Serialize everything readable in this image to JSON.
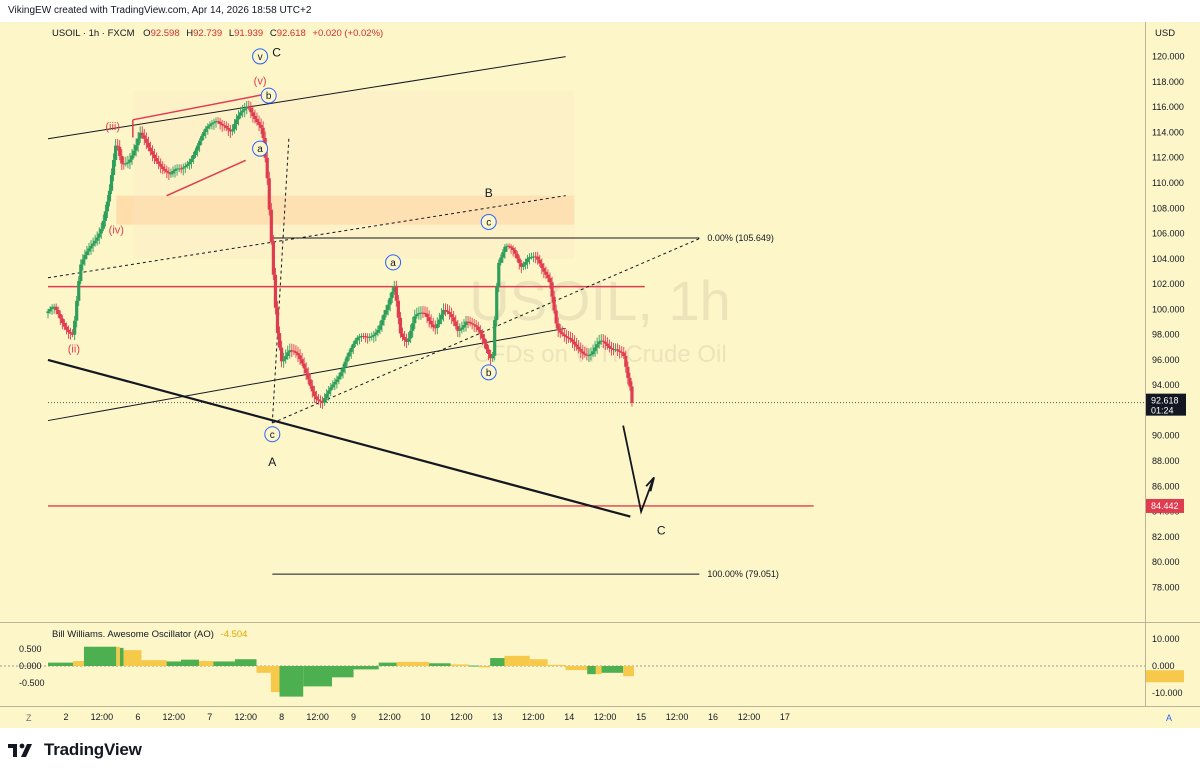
{
  "header": {
    "attribution": "VikingEW created with TradingView.com, Apr 14, 2026 18:58 UTC+2"
  },
  "footer": {
    "brand": "TradingView"
  },
  "legend": {
    "symbol": "USOIL · 1h · FXCM",
    "o_label": "O",
    "o": "92.598",
    "h_label": "H",
    "h": "92.739",
    "l_label": "L",
    "l": "91.939",
    "c_label": "C",
    "c": "92.618",
    "change": "+0.020 (+0.02%)"
  },
  "watermark": {
    "main": "USOIL, 1h",
    "sub": "CFDs on WTI Crude Oil"
  },
  "chart_data": {
    "type": "candlestick",
    "symbol": "USOIL",
    "timeframe": "1h",
    "currency": "USD",
    "price_axis": {
      "label": "USD",
      "range": [
        77,
        121
      ],
      "ticks": [
        "78.000",
        "80.000",
        "82.000",
        "84.000",
        "86.000",
        "88.000",
        "90.000",
        "92.000",
        "94.000",
        "96.000",
        "98.000",
        "100.000",
        "102.000",
        "104.000",
        "106.000",
        "108.000",
        "110.000",
        "112.000",
        "114.000",
        "116.000",
        "118.000",
        "120.000"
      ]
    },
    "last_price": {
      "value": "92.618",
      "countdown": "01:24"
    },
    "level_badge": {
      "value": "84.442"
    },
    "time_axis": {
      "range": [
        0,
        15.05
      ],
      "ticks": [
        {
          "t": 0.25,
          "label": "2"
        },
        {
          "t": 0.75,
          "label": "12:00"
        },
        {
          "t": 1.25,
          "label": "6"
        },
        {
          "t": 1.75,
          "label": "12:00"
        },
        {
          "t": 2.25,
          "label": "7"
        },
        {
          "t": 2.75,
          "label": "12:00"
        },
        {
          "t": 3.25,
          "label": "8"
        },
        {
          "t": 3.75,
          "label": "12:00"
        },
        {
          "t": 4.25,
          "label": "9"
        },
        {
          "t": 4.75,
          "label": "12:00"
        },
        {
          "t": 5.25,
          "label": "10"
        },
        {
          "t": 5.75,
          "label": "12:00"
        },
        {
          "t": 6.25,
          "label": "13"
        },
        {
          "t": 6.75,
          "label": "12:00"
        },
        {
          "t": 7.25,
          "label": "14"
        },
        {
          "t": 7.75,
          "label": "12:00"
        },
        {
          "t": 8.25,
          "label": "15"
        },
        {
          "t": 8.75,
          "label": "12:00"
        },
        {
          "t": 9.25,
          "label": "16"
        },
        {
          "t": 9.75,
          "label": "12:00"
        },
        {
          "t": 10.25,
          "label": "17"
        }
      ]
    },
    "price_path": [
      [
        0.0,
        99.7
      ],
      [
        0.08,
        99.9
      ],
      [
        0.2,
        99.0
      ],
      [
        0.35,
        98.2
      ],
      [
        0.45,
        103.2
      ],
      [
        0.6,
        105.0
      ],
      [
        0.75,
        106.8
      ],
      [
        0.85,
        109.0
      ],
      [
        0.95,
        113.0
      ],
      [
        1.02,
        111.5
      ],
      [
        1.12,
        112.0
      ],
      [
        1.22,
        113.0
      ],
      [
        1.28,
        113.8
      ],
      [
        1.4,
        112.5
      ],
      [
        1.55,
        111.8
      ],
      [
        1.7,
        110.5
      ],
      [
        1.85,
        111.0
      ],
      [
        2.0,
        112.3
      ],
      [
        2.2,
        114.0
      ],
      [
        2.35,
        115.2
      ],
      [
        2.45,
        114.8
      ],
      [
        2.55,
        113.8
      ],
      [
        2.68,
        115.4
      ],
      [
        2.78,
        116.4
      ],
      [
        2.88,
        115.3
      ],
      [
        2.98,
        114.0
      ],
      [
        3.05,
        110.0
      ],
      [
        3.12,
        104.0
      ],
      [
        3.18,
        98.8
      ],
      [
        3.25,
        96.2
      ],
      [
        3.35,
        96.8
      ],
      [
        3.48,
        96.0
      ],
      [
        3.6,
        95.0
      ],
      [
        3.72,
        93.2
      ],
      [
        3.82,
        92.4
      ],
      [
        3.92,
        93.4
      ],
      [
        4.05,
        95.0
      ],
      [
        4.15,
        96.4
      ],
      [
        4.3,
        97.4
      ],
      [
        4.45,
        98.0
      ],
      [
        4.6,
        98.6
      ],
      [
        4.72,
        99.8
      ],
      [
        4.82,
        101.8
      ],
      [
        4.9,
        98.4
      ],
      [
        5.0,
        97.6
      ],
      [
        5.1,
        99.2
      ],
      [
        5.25,
        99.6
      ],
      [
        5.38,
        98.8
      ],
      [
        5.5,
        99.8
      ],
      [
        5.6,
        99.2
      ],
      [
        5.7,
        98.4
      ],
      [
        5.82,
        99.4
      ],
      [
        5.95,
        98.4
      ],
      [
        6.1,
        96.8
      ],
      [
        6.18,
        96.2
      ],
      [
        6.22,
        100.2
      ],
      [
        6.26,
        103.8
      ],
      [
        6.36,
        104.8
      ],
      [
        6.48,
        104.4
      ],
      [
        6.58,
        103.6
      ],
      [
        6.68,
        104.4
      ],
      [
        6.78,
        104.0
      ],
      [
        6.88,
        102.8
      ],
      [
        6.98,
        102.4
      ],
      [
        7.08,
        98.8
      ],
      [
        7.2,
        97.6
      ],
      [
        7.32,
        97.0
      ],
      [
        7.44,
        96.8
      ],
      [
        7.56,
        96.6
      ],
      [
        7.68,
        97.2
      ],
      [
        7.8,
        97.0
      ],
      [
        7.9,
        97.2
      ],
      [
        8.0,
        96.6
      ],
      [
        8.08,
        93.8
      ],
      [
        8.15,
        92.618
      ]
    ],
    "horizontal_levels": [
      {
        "price": 101.8,
        "color": "#e03c4f",
        "t1": 0.0,
        "t2": 8.3
      },
      {
        "price": 84.442,
        "color": "#e03c4f",
        "t1": 0.0,
        "t2": 10.65
      }
    ],
    "fibonacci": [
      {
        "price": 105.649,
        "label": "0.00% (105.649)",
        "t1": 3.12,
        "t2": 9.06
      },
      {
        "price": 79.051,
        "label": "100.00% (79.051)",
        "t1": 3.12,
        "t2": 9.06
      }
    ],
    "zones": [
      {
        "t1": 0.95,
        "t2": 7.32,
        "p1": 106.7,
        "p2": 109.0,
        "color": "#ffd9a6"
      }
    ],
    "trendlines": [
      {
        "from": [
          0.0,
          113.5
        ],
        "to": [
          7.2,
          120.0
        ],
        "color": "#131722",
        "width": 1,
        "dash": false
      },
      {
        "from": [
          0.0,
          91.2
        ],
        "to": [
          7.2,
          98.5
        ],
        "color": "#131722",
        "width": 1,
        "dash": false
      },
      {
        "from": [
          0.0,
          96.0
        ],
        "to": [
          8.1,
          83.6
        ],
        "color": "#131722",
        "width": 2.2,
        "dash": false
      },
      {
        "from": [
          0.0,
          102.5
        ],
        "to": [
          7.2,
          109.0
        ],
        "color": "#131722",
        "width": 1,
        "dash": true
      },
      {
        "from": [
          3.12,
          91.0
        ],
        "to": [
          9.06,
          105.6
        ],
        "color": "#131722",
        "width": 1,
        "dash": true
      },
      {
        "from": [
          3.35,
          113.5
        ],
        "to": [
          3.12,
          91.0
        ],
        "color": "#131722",
        "width": 1,
        "dash": true
      },
      {
        "from": [
          1.18,
          115.0
        ],
        "to": [
          3.0,
          117.0
        ],
        "color": "#e03c4f",
        "width": 1.5,
        "dash": false
      },
      {
        "from": [
          1.65,
          109.0
        ],
        "to": [
          2.75,
          111.8
        ],
        "color": "#e03c4f",
        "width": 1.5,
        "dash": false
      },
      {
        "from": [
          1.18,
          113.6
        ],
        "to": [
          1.18,
          115.0
        ],
        "color": "#e03c4f",
        "width": 1.5,
        "dash": false
      }
    ],
    "projection": {
      "points": [
        [
          8.0,
          90.8
        ],
        [
          8.25,
          84.0
        ],
        [
          8.42,
          86.6
        ]
      ],
      "arrow_head": [
        [
          8.32,
          86.0
        ],
        [
          8.43,
          86.7
        ],
        [
          8.38,
          85.6
        ]
      ],
      "color": "#131722"
    },
    "wave_labels": [
      {
        "text": "(iii)",
        "t": 0.9,
        "p": 114.2,
        "color": "#e03c4f",
        "circled": false
      },
      {
        "text": "(iv)",
        "t": 0.95,
        "p": 106.0,
        "color": "#e03c4f",
        "circled": false
      },
      {
        "text": "(ii)",
        "t": 0.36,
        "p": 96.6,
        "color": "#e03c4f",
        "circled": false
      },
      {
        "text": "(v)",
        "t": 2.95,
        "p": 117.8,
        "color": "#e03c4f",
        "circled": false
      },
      {
        "text": "v",
        "t": 2.95,
        "p": 119.7,
        "color": "#2962ff",
        "circled": true
      },
      {
        "text": "C",
        "t": 3.18,
        "p": 120.0,
        "color": "#131722",
        "circled": false
      },
      {
        "text": "b",
        "t": 3.07,
        "p": 116.6,
        "color": "#2962ff",
        "circled": true
      },
      {
        "text": "a",
        "t": 2.95,
        "p": 112.4,
        "color": "#2962ff",
        "circled": true
      },
      {
        "text": "c",
        "t": 3.12,
        "p": 89.8,
        "color": "#2962ff",
        "circled": true
      },
      {
        "text": "A",
        "t": 3.12,
        "p": 87.6,
        "color": "#131722",
        "circled": false
      },
      {
        "text": "a",
        "t": 4.8,
        "p": 103.4,
        "color": "#2962ff",
        "circled": true
      },
      {
        "text": "B",
        "t": 6.13,
        "p": 108.9,
        "color": "#131722",
        "circled": false
      },
      {
        "text": "c",
        "t": 6.13,
        "p": 106.6,
        "color": "#2962ff",
        "circled": true
      },
      {
        "text": "b",
        "t": 6.13,
        "p": 94.7,
        "color": "#2962ff",
        "circled": true
      },
      {
        "text": "C",
        "t": 8.53,
        "p": 82.2,
        "color": "#131722",
        "circled": false
      }
    ],
    "oscillator": {
      "name": "Bill Williams. Awesome Oscillator (AO)",
      "value": "-4.504",
      "left_ticks": [
        "0.500",
        "0.000",
        "-0.500"
      ],
      "right_ticks": [
        "10.000",
        "0.000",
        "-10.000"
      ],
      "range": [
        -15,
        15
      ],
      "bars": [
        {
          "t1": 0.0,
          "t2": 0.35,
          "v": 1.5,
          "color": "#4caf50"
        },
        {
          "t1": 0.35,
          "t2": 0.5,
          "v": 2.2,
          "color": "#f6c94a"
        },
        {
          "t1": 0.5,
          "t2": 0.95,
          "v": 8.5,
          "color": "#4caf50"
        },
        {
          "t1": 0.95,
          "t2": 1.0,
          "v": 8.5,
          "color": "#f6c94a"
        },
        {
          "t1": 1.0,
          "t2": 1.05,
          "v": 8.0,
          "color": "#4caf50"
        },
        {
          "t1": 1.05,
          "t2": 1.3,
          "v": 7.0,
          "color": "#f6c94a"
        },
        {
          "t1": 1.3,
          "t2": 1.65,
          "v": 2.6,
          "color": "#f6c94a"
        },
        {
          "t1": 1.65,
          "t2": 1.85,
          "v": 2.0,
          "color": "#4caf50"
        },
        {
          "t1": 1.85,
          "t2": 2.1,
          "v": 2.8,
          "color": "#4caf50"
        },
        {
          "t1": 2.1,
          "t2": 2.3,
          "v": 2.2,
          "color": "#f6c94a"
        },
        {
          "t1": 2.3,
          "t2": 2.6,
          "v": 2.0,
          "color": "#4caf50"
        },
        {
          "t1": 2.6,
          "t2": 2.9,
          "v": 3.0,
          "color": "#4caf50"
        },
        {
          "t1": 2.9,
          "t2": 3.1,
          "v": -3.0,
          "color": "#f6c94a"
        },
        {
          "t1": 3.1,
          "t2": 3.22,
          "v": -11.5,
          "color": "#f6c94a"
        },
        {
          "t1": 3.22,
          "t2": 3.55,
          "v": -13.5,
          "color": "#4caf50"
        },
        {
          "t1": 3.55,
          "t2": 3.95,
          "v": -9.0,
          "color": "#4caf50"
        },
        {
          "t1": 3.95,
          "t2": 4.25,
          "v": -5.0,
          "color": "#4caf50"
        },
        {
          "t1": 4.25,
          "t2": 4.6,
          "v": -1.5,
          "color": "#4caf50"
        },
        {
          "t1": 4.6,
          "t2": 4.85,
          "v": 1.5,
          "color": "#4caf50"
        },
        {
          "t1": 4.85,
          "t2": 5.3,
          "v": 1.8,
          "color": "#f6c94a"
        },
        {
          "t1": 5.3,
          "t2": 5.6,
          "v": 1.2,
          "color": "#4caf50"
        },
        {
          "t1": 5.6,
          "t2": 5.85,
          "v": 0.7,
          "color": "#f6c94a"
        },
        {
          "t1": 5.85,
          "t2": 6.0,
          "v": 0.2,
          "color": "#4caf50"
        },
        {
          "t1": 6.0,
          "t2": 6.15,
          "v": -0.6,
          "color": "#f6c94a"
        },
        {
          "t1": 6.15,
          "t2": 6.35,
          "v": 3.5,
          "color": "#4caf50"
        },
        {
          "t1": 6.35,
          "t2": 6.7,
          "v": 4.5,
          "color": "#f6c94a"
        },
        {
          "t1": 6.7,
          "t2": 6.95,
          "v": 3.0,
          "color": "#f6c94a"
        },
        {
          "t1": 6.95,
          "t2": 7.2,
          "v": 0.5,
          "color": "#f6c94a"
        },
        {
          "t1": 7.2,
          "t2": 7.5,
          "v": -1.8,
          "color": "#f6c94a"
        },
        {
          "t1": 7.5,
          "t2": 7.62,
          "v": -3.6,
          "color": "#4caf50"
        },
        {
          "t1": 7.62,
          "t2": 7.7,
          "v": -3.6,
          "color": "#f6c94a"
        },
        {
          "t1": 7.7,
          "t2": 8.0,
          "v": -3.0,
          "color": "#4caf50"
        },
        {
          "t1": 8.0,
          "t2": 8.15,
          "v": -4.5,
          "color": "#f6c94a"
        }
      ]
    }
  }
}
